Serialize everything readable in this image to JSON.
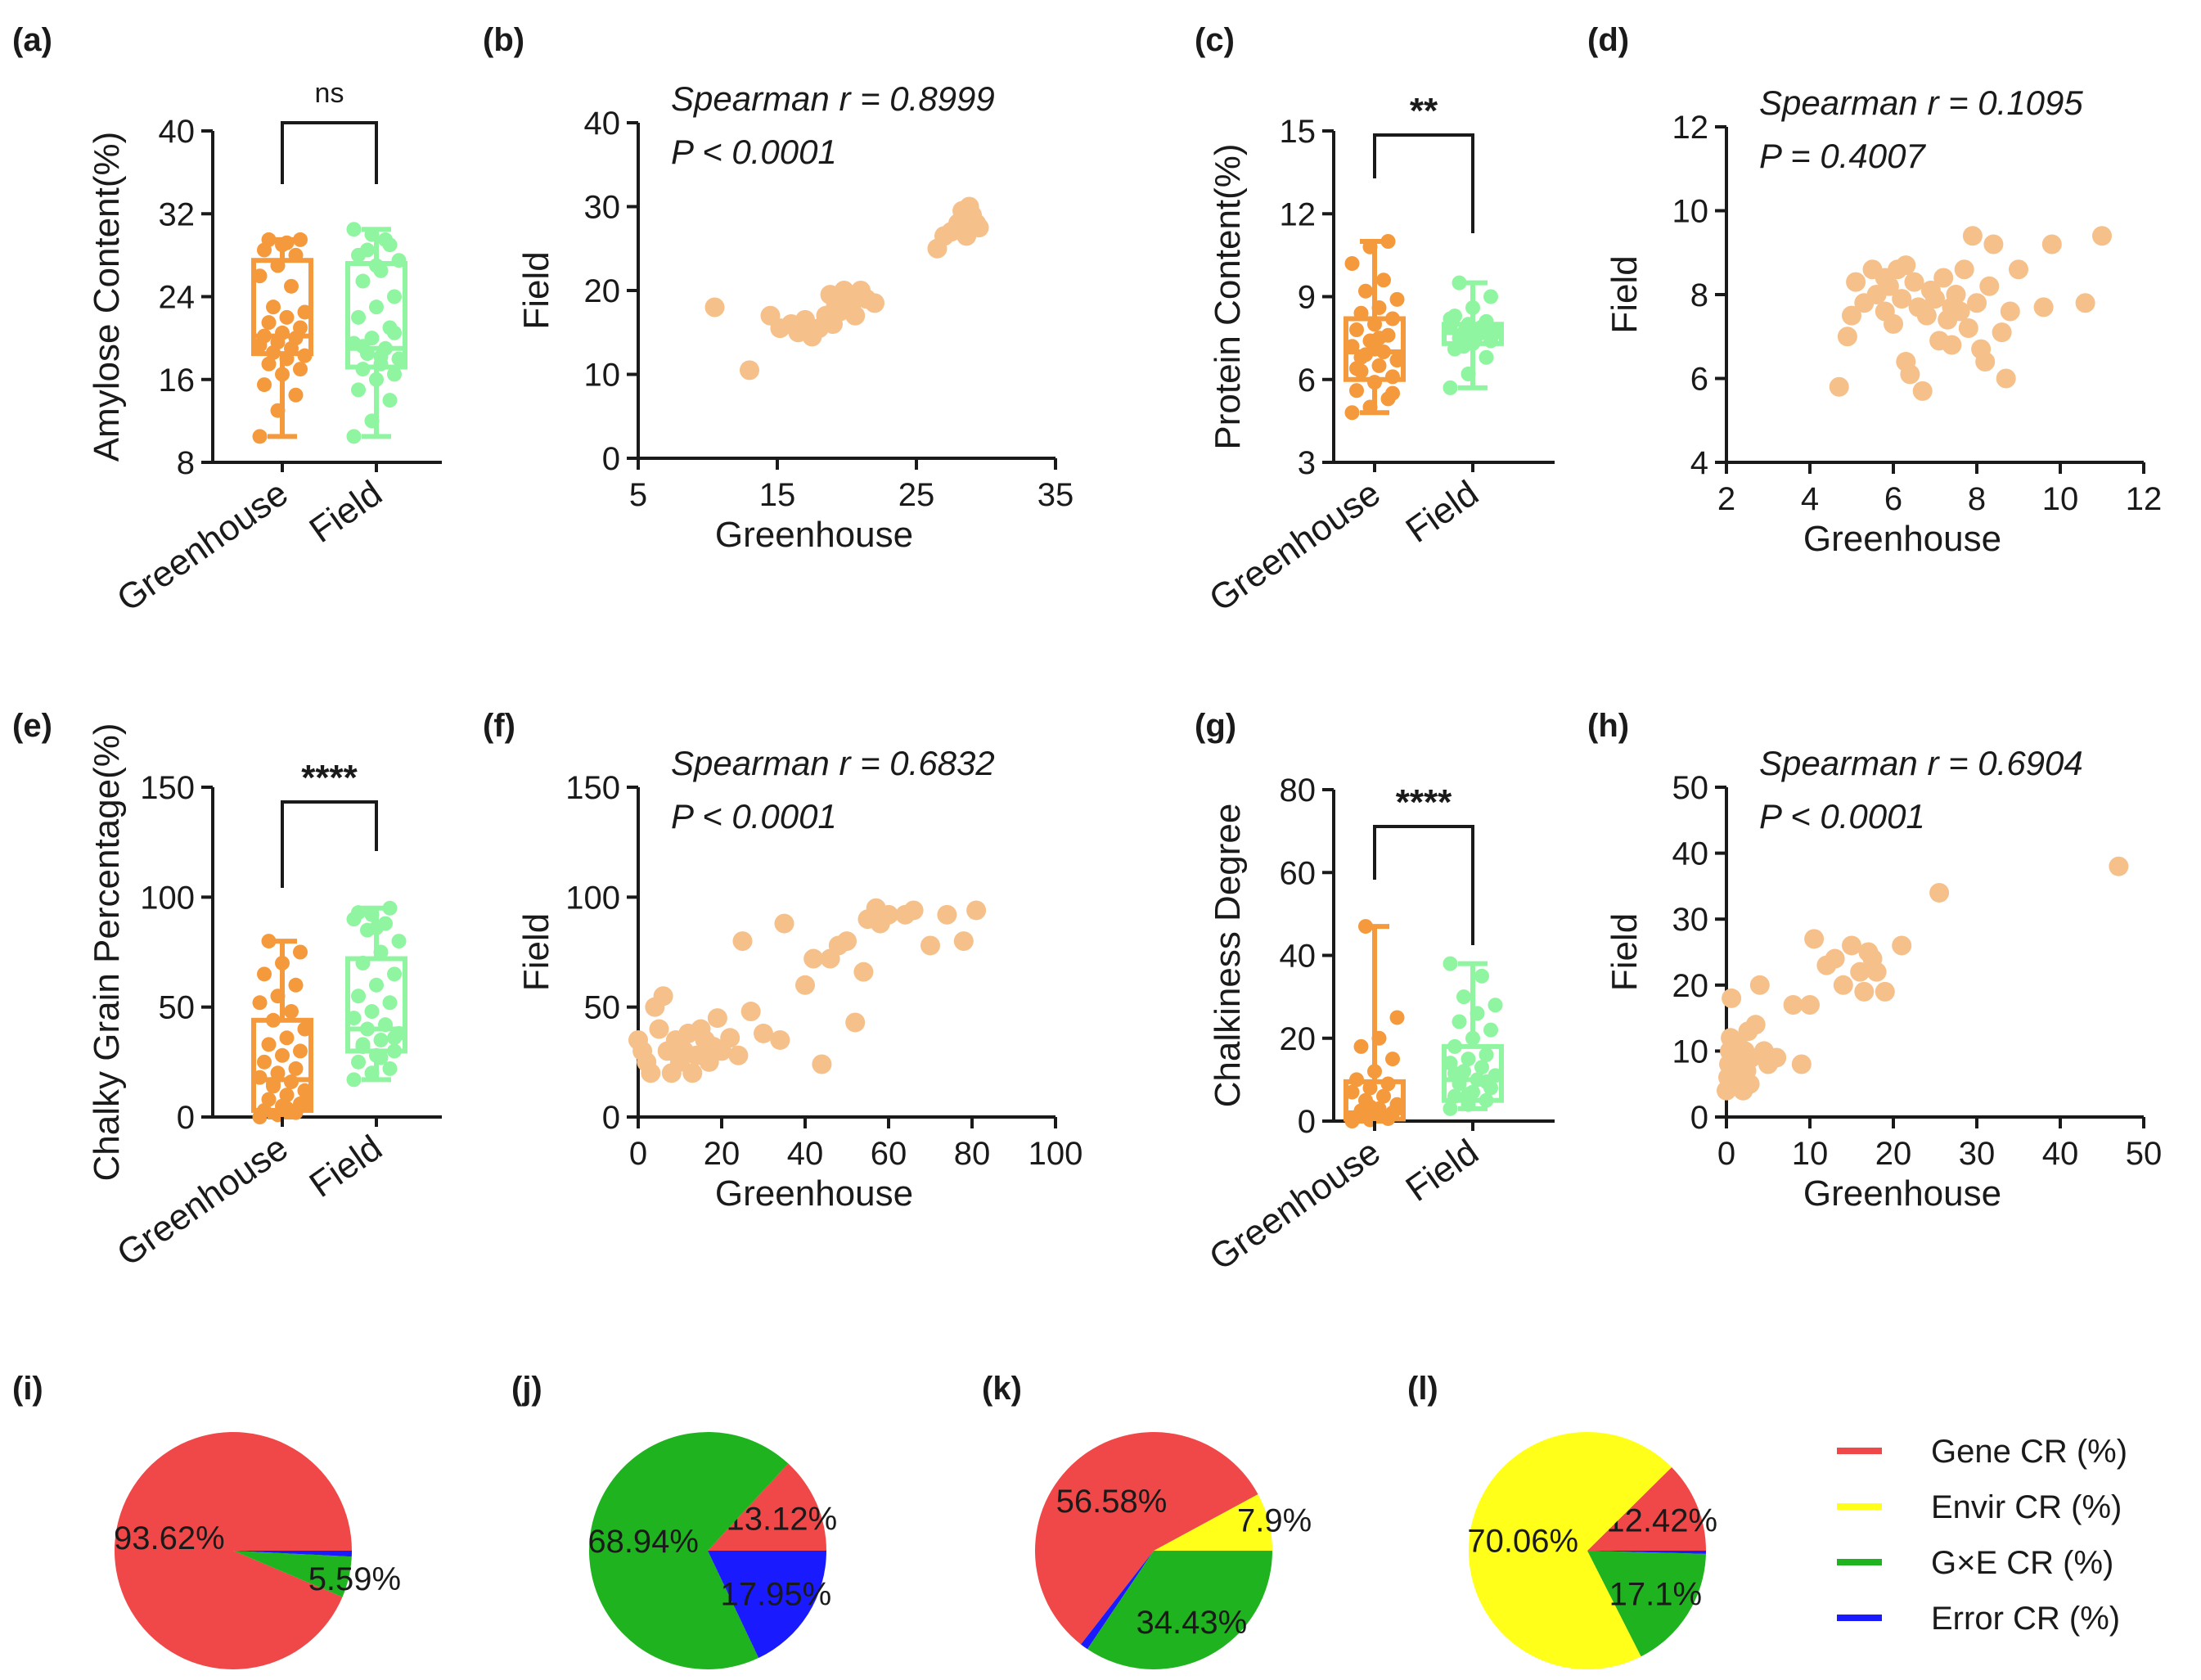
{
  "chart_data": [
    {
      "id": "a",
      "panel_label": "(a)",
      "type": "box",
      "groups": [
        "Greenhouse",
        "Field"
      ],
      "ylabel": "Amylose Content(%)",
      "ylim": [
        8,
        40
      ],
      "yticks": [
        8,
        16,
        24,
        32,
        40
      ],
      "significance": "ns",
      "box_stats": [
        {
          "min": 10.5,
          "q1": 18.5,
          "median": 20.2,
          "q3": 27.5,
          "max": 29.5
        },
        {
          "min": 10.5,
          "q1": 17.2,
          "median": 19.0,
          "q3": 27.2,
          "max": 30.5
        }
      ],
      "points": [
        [
          10.5,
          13,
          14.5,
          15.5,
          16.5,
          17,
          17.5,
          18,
          18.3,
          18.6,
          19,
          19.3,
          19.6,
          20,
          20.2,
          20.5,
          21,
          21.5,
          22,
          22.5,
          23,
          25,
          26,
          27,
          28,
          28.5,
          29,
          29.5,
          29.5,
          29.2
        ],
        [
          10.5,
          12,
          14,
          15,
          16,
          16.5,
          17,
          17.5,
          18,
          18.5,
          19,
          19.5,
          20,
          21,
          22,
          23,
          24,
          25.5,
          26.5,
          27.5,
          28.5,
          29.5,
          30.5,
          30,
          29,
          28,
          27,
          20.5,
          19.2,
          18.2
        ]
      ]
    },
    {
      "id": "b",
      "panel_label": "(b)",
      "type": "scatter",
      "xlabel": "Greenhouse",
      "ylabel": "Field",
      "xlim": [
        5,
        35
      ],
      "xticks": [
        5,
        15,
        25,
        35
      ],
      "ylim": [
        0,
        40
      ],
      "yticks": [
        0,
        10,
        20,
        30,
        40
      ],
      "annotation": [
        "Spearman r = 0.8999",
        "P < 0.0001"
      ],
      "points": [
        [
          10.5,
          18
        ],
        [
          13,
          10.5
        ],
        [
          14.5,
          17
        ],
        [
          15.2,
          15.5
        ],
        [
          16,
          16
        ],
        [
          16.5,
          15
        ],
        [
          17,
          16.5
        ],
        [
          17.5,
          14.5
        ],
        [
          18,
          15.5
        ],
        [
          18.5,
          17
        ],
        [
          19,
          16
        ],
        [
          19.2,
          18
        ],
        [
          19.5,
          17.5
        ],
        [
          20,
          19
        ],
        [
          20.3,
          18
        ],
        [
          20.6,
          17
        ],
        [
          21,
          20
        ],
        [
          21.4,
          19
        ],
        [
          22,
          18.5
        ],
        [
          18.8,
          19.5
        ],
        [
          19.8,
          20
        ],
        [
          20.8,
          19.5
        ],
        [
          26.5,
          25
        ],
        [
          27,
          26.5
        ],
        [
          27.5,
          27
        ],
        [
          28,
          28
        ],
        [
          28.3,
          29.5
        ],
        [
          28.8,
          30
        ],
        [
          29,
          29
        ],
        [
          29.3,
          28
        ],
        [
          29.5,
          27.5
        ],
        [
          28.6,
          26.5
        ]
      ]
    },
    {
      "id": "c",
      "panel_label": "(c)",
      "type": "box",
      "groups": [
        "Greenhouse",
        "Field"
      ],
      "ylabel": "Protein Content(%)",
      "ylim": [
        3,
        15
      ],
      "yticks": [
        3,
        6,
        9,
        12,
        15
      ],
      "significance": "**",
      "box_stats": [
        {
          "min": 4.8,
          "q1": 6.0,
          "median": 7.0,
          "q3": 8.2,
          "max": 11.0
        },
        {
          "min": 5.7,
          "q1": 7.3,
          "median": 7.7,
          "q3": 8.0,
          "max": 9.5
        }
      ],
      "points": [
        [
          4.8,
          5,
          5.3,
          5.6,
          5.9,
          6.1,
          6.3,
          6.5,
          6.7,
          6.9,
          7,
          7.2,
          7.4,
          7.6,
          7.8,
          8,
          8.2,
          8.4,
          8.6,
          8.9,
          9.2,
          9.6,
          10.2,
          10.8,
          11,
          6.4,
          7.1,
          5.5,
          6.8,
          7.5
        ],
        [
          5.7,
          6.2,
          6.8,
          7.1,
          7.3,
          7.4,
          7.5,
          7.6,
          7.7,
          7.7,
          7.8,
          7.9,
          8,
          8.1,
          8.3,
          8.6,
          9,
          9.5,
          7.6,
          7.8,
          7.2,
          7.9,
          8.2,
          7.4,
          7.7
        ]
      ]
    },
    {
      "id": "d",
      "panel_label": "(d)",
      "type": "scatter",
      "xlabel": "Greenhouse",
      "ylabel": "Field",
      "xlim": [
        2,
        12
      ],
      "xticks": [
        2,
        4,
        6,
        8,
        10,
        12
      ],
      "ylim": [
        4,
        12
      ],
      "yticks": [
        4,
        6,
        8,
        10,
        12
      ],
      "annotation": [
        "Spearman r = 0.1095",
        "P = 0.4007"
      ],
      "points": [
        [
          4.7,
          5.8
        ],
        [
          4.9,
          7
        ],
        [
          5,
          7.5
        ],
        [
          5.1,
          8.3
        ],
        [
          5.3,
          7.8
        ],
        [
          5.5,
          8.6
        ],
        [
          5.6,
          8
        ],
        [
          5.8,
          7.6
        ],
        [
          5.9,
          8.2
        ],
        [
          6,
          7.3
        ],
        [
          6.1,
          8.6
        ],
        [
          6.2,
          7.9
        ],
        [
          6.3,
          6.4
        ],
        [
          6.4,
          6.1
        ],
        [
          6.5,
          8.3
        ],
        [
          6.6,
          7.7
        ],
        [
          6.7,
          5.7
        ],
        [
          6.8,
          7.5
        ],
        [
          6.9,
          8.1
        ],
        [
          7,
          7.9
        ],
        [
          7.1,
          6.9
        ],
        [
          7.2,
          8.4
        ],
        [
          7.3,
          7.4
        ],
        [
          7.4,
          6.8
        ],
        [
          7.5,
          8
        ],
        [
          7.6,
          7.6
        ],
        [
          7.7,
          8.6
        ],
        [
          7.8,
          7.2
        ],
        [
          7.9,
          9.4
        ],
        [
          8,
          7.8
        ],
        [
          8.1,
          6.7
        ],
        [
          8.2,
          6.4
        ],
        [
          8.3,
          8.2
        ],
        [
          8.4,
          9.2
        ],
        [
          8.6,
          7.1
        ],
        [
          8.7,
          6
        ],
        [
          8.8,
          7.6
        ],
        [
          9,
          8.6
        ],
        [
          9.6,
          7.7
        ],
        [
          9.8,
          9.2
        ],
        [
          10.6,
          7.8
        ],
        [
          11,
          9.4
        ],
        [
          6.3,
          8.7
        ],
        [
          7.4,
          7.7
        ],
        [
          5.8,
          8.4
        ]
      ]
    },
    {
      "id": "e",
      "panel_label": "(e)",
      "type": "box",
      "groups": [
        "Greenhouse",
        "Field"
      ],
      "ylabel": "Chalky Grain Percentage(%)",
      "ylim": [
        0,
        150
      ],
      "yticks": [
        0,
        50,
        100,
        150
      ],
      "significance": "****",
      "box_stats": [
        {
          "min": 0,
          "q1": 3,
          "median": 17,
          "q3": 44,
          "max": 80
        },
        {
          "min": 17,
          "q1": 30,
          "median": 40,
          "q3": 72,
          "max": 95
        }
      ],
      "points": [
        [
          0,
          1,
          2,
          3,
          5,
          6,
          8,
          10,
          12,
          14,
          16,
          18,
          20,
          22,
          25,
          28,
          30,
          33,
          36,
          40,
          44,
          48,
          52,
          55,
          60,
          65,
          70,
          75,
          80,
          4,
          7,
          15
        ],
        [
          17,
          20,
          22,
          25,
          28,
          30,
          32,
          35,
          38,
          40,
          42,
          45,
          48,
          52,
          55,
          60,
          65,
          70,
          75,
          80,
          85,
          88,
          90,
          92,
          95,
          93,
          86,
          36,
          33,
          27
        ]
      ]
    },
    {
      "id": "f",
      "panel_label": "(f)",
      "type": "scatter",
      "xlabel": "Greenhouse",
      "ylabel": "Field",
      "xlim": [
        0,
        100
      ],
      "xticks": [
        0,
        20,
        40,
        60,
        80,
        100
      ],
      "ylim": [
        0,
        150
      ],
      "yticks": [
        0,
        50,
        100,
        150
      ],
      "annotation": [
        "Spearman r = 0.6832",
        "P < 0.0001"
      ],
      "points": [
        [
          0,
          35
        ],
        [
          1,
          30
        ],
        [
          2,
          25
        ],
        [
          3,
          20
        ],
        [
          4,
          50
        ],
        [
          5,
          40
        ],
        [
          6,
          55
        ],
        [
          7,
          30
        ],
        [
          8,
          20
        ],
        [
          9,
          35
        ],
        [
          10,
          25
        ],
        [
          11,
          30
        ],
        [
          12,
          38
        ],
        [
          13,
          20
        ],
        [
          14,
          28
        ],
        [
          15,
          40
        ],
        [
          16,
          35
        ],
        [
          17,
          25
        ],
        [
          18,
          32
        ],
        [
          19,
          45
        ],
        [
          20,
          30
        ],
        [
          22,
          36
        ],
        [
          24,
          28
        ],
        [
          25,
          80
        ],
        [
          27,
          48
        ],
        [
          30,
          38
        ],
        [
          34,
          35
        ],
        [
          35,
          88
        ],
        [
          40,
          60
        ],
        [
          42,
          72
        ],
        [
          44,
          24
        ],
        [
          46,
          72
        ],
        [
          48,
          78
        ],
        [
          50,
          80
        ],
        [
          52,
          43
        ],
        [
          54,
          66
        ],
        [
          55,
          90
        ],
        [
          57,
          95
        ],
        [
          58,
          88
        ],
        [
          60,
          92
        ],
        [
          64,
          92
        ],
        [
          66,
          94
        ],
        [
          70,
          78
        ],
        [
          74,
          92
        ],
        [
          78,
          80
        ],
        [
          81,
          94
        ]
      ]
    },
    {
      "id": "g",
      "panel_label": "(g)",
      "type": "box",
      "groups": [
        "Greenhouse",
        "Field"
      ],
      "ylabel": "Chalkiness Degree",
      "ylim": [
        0,
        80
      ],
      "yticks": [
        0,
        20,
        40,
        60,
        80
      ],
      "significance": "****",
      "box_stats": [
        {
          "min": 0,
          "q1": 0.5,
          "median": 2,
          "q3": 9.5,
          "max": 47
        },
        {
          "min": 3,
          "q1": 5,
          "median": 10,
          "q3": 18,
          "max": 38
        }
      ],
      "points": [
        [
          0,
          0.3,
          0.6,
          1,
          1.5,
          2,
          2.5,
          3,
          4,
          5,
          6,
          7,
          8,
          9,
          10,
          12,
          15,
          18,
          20,
          25,
          47,
          1.2,
          0.8,
          3.5
        ],
        [
          3,
          4,
          5,
          6,
          7,
          8,
          9,
          10,
          11,
          12,
          13,
          14,
          15,
          16,
          18,
          20,
          22,
          24,
          26,
          28,
          30,
          35,
          38,
          6.5,
          9.5,
          11.5
        ]
      ]
    },
    {
      "id": "h",
      "panel_label": "(h)",
      "type": "scatter",
      "xlabel": "Greenhouse",
      "ylabel": "Field",
      "xlim": [
        0,
        50
      ],
      "xticks": [
        0,
        10,
        20,
        30,
        40,
        50
      ],
      "ylim": [
        0,
        50
      ],
      "yticks": [
        0,
        10,
        20,
        30,
        40,
        50
      ],
      "annotation": [
        "Spearman r = 0.6904",
        "P < 0.0001"
      ],
      "points": [
        [
          0,
          4
        ],
        [
          0.2,
          6
        ],
        [
          0.3,
          8
        ],
        [
          0.4,
          10
        ],
        [
          0.5,
          12
        ],
        [
          0.6,
          18
        ],
        [
          0.8,
          5
        ],
        [
          1,
          7
        ],
        [
          1.2,
          9
        ],
        [
          1.4,
          11
        ],
        [
          1.6,
          6
        ],
        [
          1.8,
          8
        ],
        [
          2,
          4
        ],
        [
          2.2,
          10
        ],
        [
          2.4,
          7
        ],
        [
          2.6,
          13
        ],
        [
          2.8,
          5
        ],
        [
          3,
          9
        ],
        [
          3.5,
          14
        ],
        [
          4,
          20
        ],
        [
          4.5,
          10
        ],
        [
          5,
          8
        ],
        [
          6,
          9
        ],
        [
          8,
          17
        ],
        [
          9,
          8
        ],
        [
          10,
          17
        ],
        [
          10.5,
          27
        ],
        [
          12,
          23
        ],
        [
          13,
          24
        ],
        [
          14,
          20
        ],
        [
          15,
          26
        ],
        [
          16,
          22
        ],
        [
          16.5,
          19
        ],
        [
          17,
          25
        ],
        [
          17.5,
          24
        ],
        [
          18,
          22
        ],
        [
          19,
          19
        ],
        [
          21,
          26
        ],
        [
          25.5,
          34
        ],
        [
          47,
          38
        ]
      ]
    },
    {
      "id": "i",
      "panel_label": "(i)",
      "type": "pie",
      "slices": [
        {
          "name": "Gene CR (%)",
          "value": 93.62,
          "label": "93.62%"
        },
        {
          "name": "G×E CR (%)",
          "value": 5.59,
          "label": "5.59%"
        },
        {
          "name": "Error CR (%)",
          "value": 0.79,
          "label": ""
        }
      ]
    },
    {
      "id": "j",
      "panel_label": "(j)",
      "type": "pie",
      "slices": [
        {
          "name": "Gene CR (%)",
          "value": 13.12,
          "label": "13.12%"
        },
        {
          "name": "G×E CR (%)",
          "value": 68.94,
          "label": "68.94%"
        },
        {
          "name": "Error CR (%)",
          "value": 17.95,
          "label": "17.95%"
        }
      ]
    },
    {
      "id": "k",
      "panel_label": "(k)",
      "type": "pie",
      "slices": [
        {
          "name": "Envir CR (%)",
          "value": 7.9,
          "label": "7.9%"
        },
        {
          "name": "Gene CR (%)",
          "value": 56.58,
          "label": "56.58%"
        },
        {
          "name": "Error CR (%)",
          "value": 1.09,
          "label": ""
        },
        {
          "name": "G×E CR (%)",
          "value": 34.43,
          "label": "34.43%"
        }
      ]
    },
    {
      "id": "l",
      "panel_label": "(l)",
      "type": "pie",
      "slices": [
        {
          "name": "Gene CR (%)",
          "value": 12.42,
          "label": "12.42%"
        },
        {
          "name": "Envir CR (%)",
          "value": 70.06,
          "label": "70.06%"
        },
        {
          "name": "G×E CR (%)",
          "value": 17.1,
          "label": "17.1%"
        },
        {
          "name": "Error CR (%)",
          "value": 0.42,
          "label": ""
        }
      ]
    }
  ],
  "legend": {
    "items": [
      {
        "label": "Gene CR (%)",
        "color": "#f04848"
      },
      {
        "label": "Envir CR (%)",
        "color": "#ffff1a"
      },
      {
        "label": "G×E CR (%)",
        "color": "#1fb31f"
      },
      {
        "label": "Error CR (%)",
        "color": "#1a1aff"
      }
    ]
  },
  "colors": {
    "greenhouse": "#f59a3c",
    "field": "#8ff5a0",
    "scatter": "#f5c08a",
    "gene": "#f04848",
    "envir": "#ffff1a",
    "gxe": "#1fb31f",
    "error": "#1a1aff",
    "axis": "#1a1a1a"
  }
}
